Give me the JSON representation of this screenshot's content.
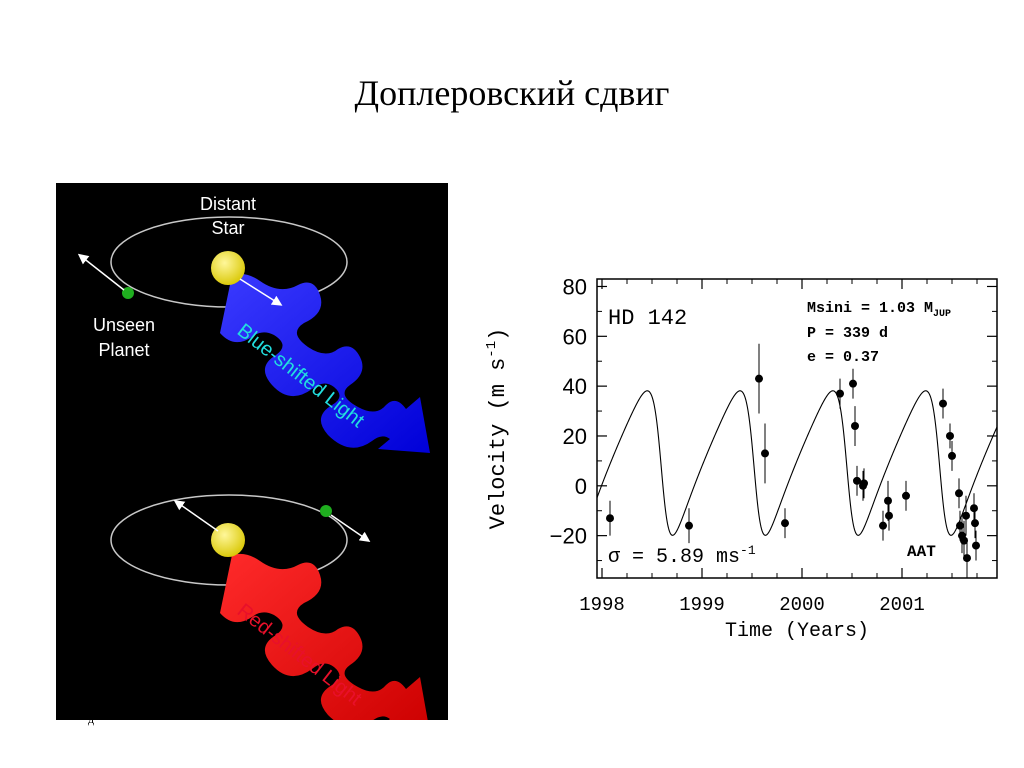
{
  "slide": {
    "title": "Доплеровский сдвиг",
    "footnote": "д"
  },
  "illustration": {
    "top_label_line1": "Distant",
    "top_label_line2": "Star",
    "planet_label_line1": "Unseen",
    "planet_label_line2": "Planet",
    "blue_label": "Blue-shifted Light",
    "red_label": "Red-shifted Light",
    "colors": {
      "background": "#000000",
      "star": "#f2e200",
      "planet": "#1fae1f",
      "blue_light": "#1010ff",
      "red_light": "#ee1010",
      "blue_text": "#22dede",
      "red_text": "#e8102a",
      "orbit": "#c8c8c8"
    }
  },
  "chart_data": {
    "type": "scatter",
    "star_name": "HD 142",
    "params": {
      "line1": "Msini = 1.03 M",
      "line1_sub": "JUP",
      "line2": "P = 339 d",
      "line3": "e = 0.37"
    },
    "sigma_label": "σ = 5.89 ms",
    "sigma_sup": "-1",
    "telescope": "AAT",
    "xlabel": "Time (Years)",
    "ylabel_main": "Velocity (m s",
    "ylabel_sup": "-1",
    "ylabel_end": ")",
    "xlim": [
      1997.95,
      2001.95
    ],
    "ylim": [
      -37,
      83
    ],
    "x_ticks": [
      1998,
      1999,
      2000,
      2001
    ],
    "x_tick_labels": [
      "1998",
      "1999",
      "2000",
      "2001"
    ],
    "y_ticks": [
      80,
      60,
      40,
      20,
      0,
      -20
    ],
    "y_tick_labels": [
      "80",
      "60",
      "40",
      "20",
      "0",
      "−20"
    ],
    "grid": false,
    "observations": {
      "x": [
        1998.08,
        1998.87,
        1999.57,
        1999.63,
        1999.83,
        2000.38,
        2000.51,
        2000.53,
        2000.55,
        2000.61,
        2000.62,
        2000.81,
        2000.86,
        2000.87,
        2001.04,
        2001.41,
        2001.48,
        2001.5,
        2001.57,
        2001.58,
        2001.6,
        2001.62,
        2001.64,
        2001.65,
        2001.72,
        2001.73,
        2001.74
      ],
      "y": [
        -13,
        -16,
        43,
        13,
        -15,
        37,
        41,
        24,
        2,
        0,
        1,
        -16,
        -6,
        -12,
        -4,
        33,
        20,
        12,
        -3,
        -16,
        -20,
        -22,
        -12,
        -29,
        -9,
        -15,
        -24
      ],
      "err": [
        7,
        7,
        14,
        12,
        6,
        6,
        6,
        8,
        6,
        6,
        6,
        6,
        8,
        6,
        6,
        6,
        5,
        6,
        6,
        6,
        7,
        8,
        8,
        8,
        6,
        6,
        6
      ]
    },
    "model": {
      "period_days": 339,
      "eccentricity": 0.37,
      "semi_amplitude": 29,
      "offset": 11,
      "omega_deg": 100,
      "periastron_year": 1998.6
    }
  }
}
